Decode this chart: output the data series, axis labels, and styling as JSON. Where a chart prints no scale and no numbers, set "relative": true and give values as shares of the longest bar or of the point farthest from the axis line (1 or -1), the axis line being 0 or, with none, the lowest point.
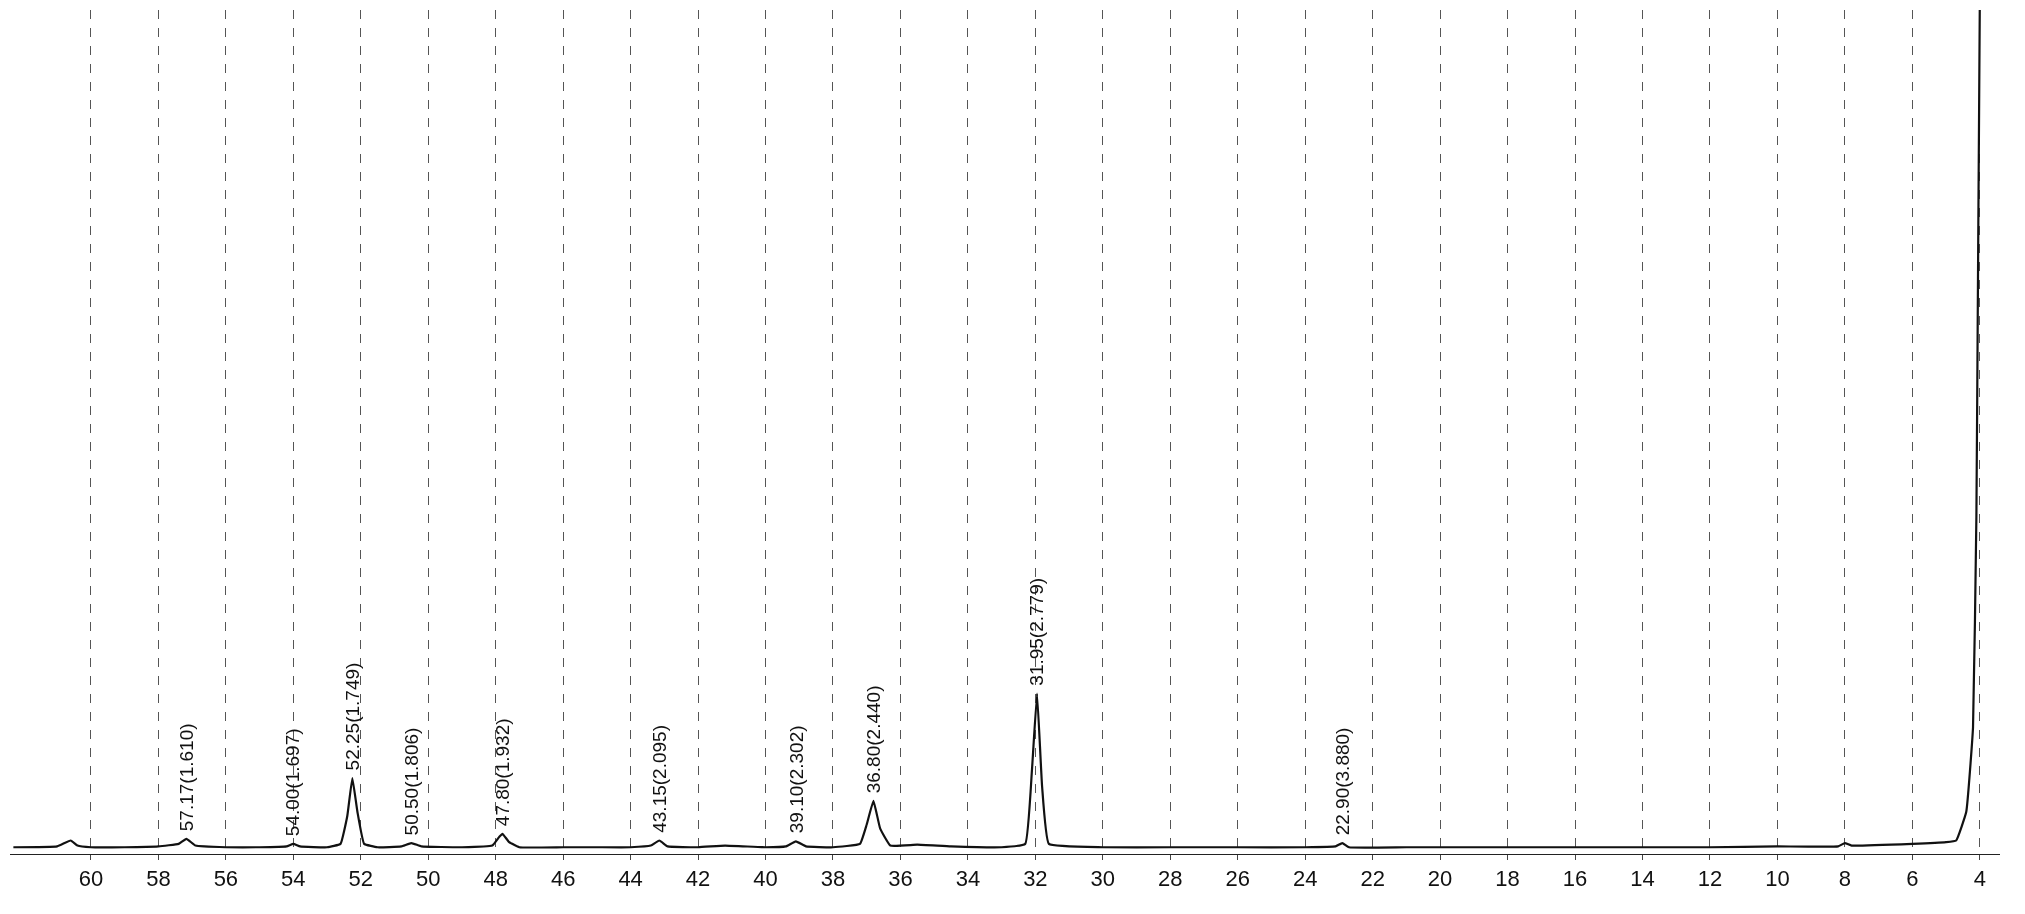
{
  "chart_data": {
    "type": "line",
    "relative": true,
    "x": [
      62.3,
      61.0,
      60.6,
      60.4,
      60.0,
      59.0,
      58.0,
      57.4,
      57.17,
      56.9,
      56.0,
      55.0,
      54.2,
      54.0,
      53.8,
      53.0,
      52.6,
      52.4,
      52.25,
      52.1,
      51.9,
      51.5,
      50.8,
      50.5,
      50.2,
      49.0,
      48.1,
      47.9,
      47.8,
      47.6,
      47.3,
      46.0,
      45.0,
      44.0,
      43.4,
      43.15,
      42.9,
      42.0,
      41.2,
      40.0,
      39.4,
      39.1,
      38.8,
      38.0,
      37.2,
      37.0,
      36.8,
      36.6,
      36.3,
      35.5,
      34.5,
      33.0,
      32.3,
      32.1,
      31.95,
      31.8,
      31.6,
      30.0,
      28.0,
      26.0,
      24.0,
      23.1,
      22.9,
      22.7,
      21.0,
      18.0,
      15.0,
      12.0,
      10.0,
      8.2,
      8.0,
      7.8,
      6.0,
      5.0,
      4.7,
      4.4,
      4.2,
      4.1,
      4.05,
      4.0
    ],
    "series": [
      {
        "color": "#111111",
        "values": [
          0.008,
          0.009,
          0.016,
          0.01,
          0.008,
          0.008,
          0.009,
          0.012,
          0.018,
          0.01,
          0.008,
          0.008,
          0.009,
          0.012,
          0.009,
          0.008,
          0.012,
          0.045,
          0.09,
          0.05,
          0.012,
          0.008,
          0.009,
          0.013,
          0.009,
          0.008,
          0.01,
          0.02,
          0.024,
          0.014,
          0.008,
          0.008,
          0.008,
          0.008,
          0.01,
          0.016,
          0.009,
          0.008,
          0.01,
          0.008,
          0.009,
          0.015,
          0.009,
          0.008,
          0.012,
          0.035,
          0.063,
          0.03,
          0.01,
          0.011,
          0.009,
          0.008,
          0.012,
          0.1,
          0.19,
          0.08,
          0.012,
          0.008,
          0.008,
          0.008,
          0.008,
          0.009,
          0.013,
          0.008,
          0.008,
          0.008,
          0.008,
          0.008,
          0.009,
          0.009,
          0.013,
          0.01,
          0.012,
          0.014,
          0.016,
          0.05,
          0.15,
          0.4,
          0.7,
          1.0
        ]
      }
    ],
    "xlim": [
      62.4,
      3.4
    ],
    "xticks": [
      60,
      58,
      56,
      54,
      52,
      50,
      48,
      46,
      44,
      42,
      40,
      38,
      36,
      34,
      32,
      30,
      28,
      26,
      24,
      22,
      20,
      18,
      16,
      14,
      12,
      10,
      8,
      6,
      4
    ],
    "grid": "x",
    "annotations": [
      {
        "text": "57.17(1.610)",
        "x": 57.17,
        "y": 0.018
      },
      {
        "text": "54.00(1.697)",
        "x": 54.0,
        "y": 0.012
      },
      {
        "text": "52.25(1.749)",
        "x": 52.25,
        "y": 0.09
      },
      {
        "text": "50.50(1.806)",
        "x": 50.5,
        "y": 0.013
      },
      {
        "text": "47.80(1.932)",
        "x": 47.8,
        "y": 0.024
      },
      {
        "text": "43.15(2.095)",
        "x": 43.15,
        "y": 0.016
      },
      {
        "text": "39.10(2.302)",
        "x": 39.1,
        "y": 0.015
      },
      {
        "text": "36.80(2.440)",
        "x": 36.8,
        "y": 0.063
      },
      {
        "text": "31.95(2.779)",
        "x": 31.95,
        "y": 0.19
      },
      {
        "text": "22.90(3.880)",
        "x": 22.9,
        "y": 0.013
      }
    ]
  }
}
